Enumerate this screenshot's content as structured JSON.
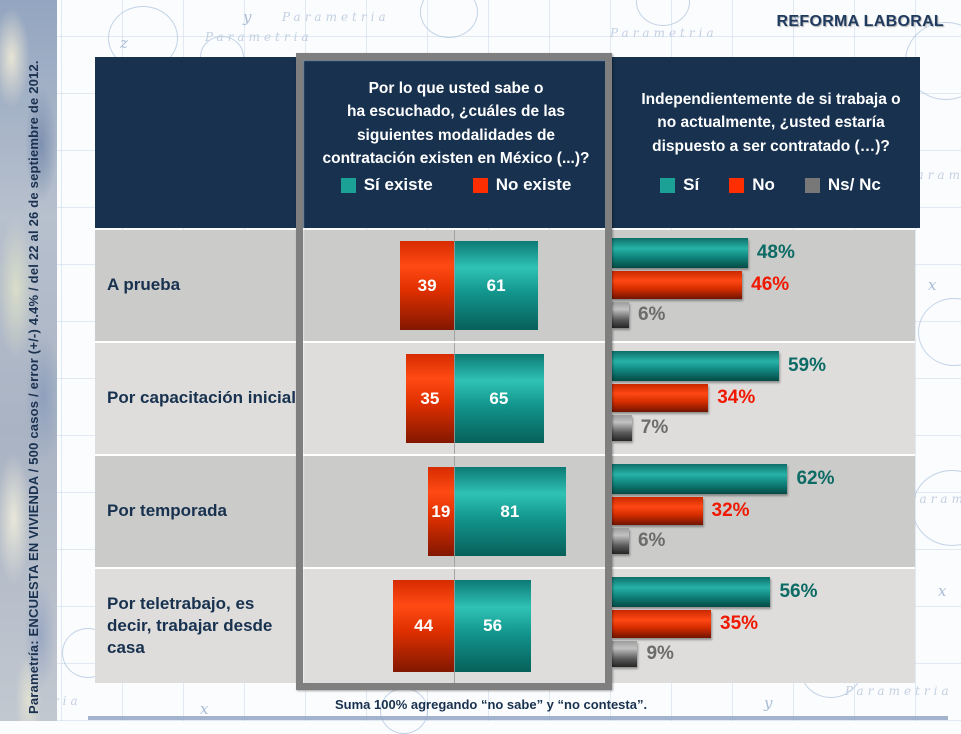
{
  "title": "REFORMA LABORAL",
  "sidebar_note": "Parametría: ENCUESTA EN VIVIENDA / 500 casos / error (+/-) 4.4% / del 22 al 26 de septiembre de 2012.",
  "footnote": "Suma 100%  agregando “no sabe” y “no contesta”.",
  "watermark": "Parametria",
  "blueprint_letters": {
    "x": "x",
    "y": "y",
    "z": "z"
  },
  "colors": {
    "navy": "#17314f",
    "teal": "#1ba195",
    "red": "#ff2e00",
    "gray": "#787878",
    "teal_label": "#0d6b65",
    "red_label": "#f01800",
    "gray_label": "#6c6c6c"
  },
  "chart_data": {
    "type": "bar",
    "categories": [
      "A prueba",
      "Por capacitación inicial",
      "Por temporada",
      "Por teletrabajo, es decir, trabajar desde casa"
    ],
    "left_chart": {
      "question": "Por lo que usted sabe o\nha escuchado, ¿cuáles de las\nsiguientes modalidades de\ncontratación existen en México (...)?",
      "layout": "diverging horizontal bars, values sum to 100 per row",
      "legend": [
        "Sí existe",
        "No existe"
      ],
      "series": [
        {
          "name": "No existe",
          "color": "#ff2e00",
          "side": "left",
          "values": [
            39,
            35,
            19,
            44
          ]
        },
        {
          "name": "Sí existe",
          "color": "#1ba195",
          "side": "right",
          "values": [
            61,
            65,
            81,
            56
          ]
        }
      ]
    },
    "right_chart": {
      "question": "Independientemente de si trabaja o\nno actualmente, ¿usted estaría\ndispuesto a ser contratado (…)?",
      "layout": "grouped horizontal bars from common baseline",
      "legend": [
        "Sí",
        "No",
        "Ns/ Nc"
      ],
      "value_suffix": "%",
      "series": [
        {
          "name": "Sí",
          "color": "#1ba195",
          "values": [
            48,
            59,
            62,
            56
          ]
        },
        {
          "name": "No",
          "color": "#ff2e00",
          "values": [
            46,
            34,
            32,
            35
          ]
        },
        {
          "name": "Ns/ Nc",
          "color": "#787878",
          "values": [
            6,
            7,
            6,
            9
          ]
        }
      ]
    }
  }
}
